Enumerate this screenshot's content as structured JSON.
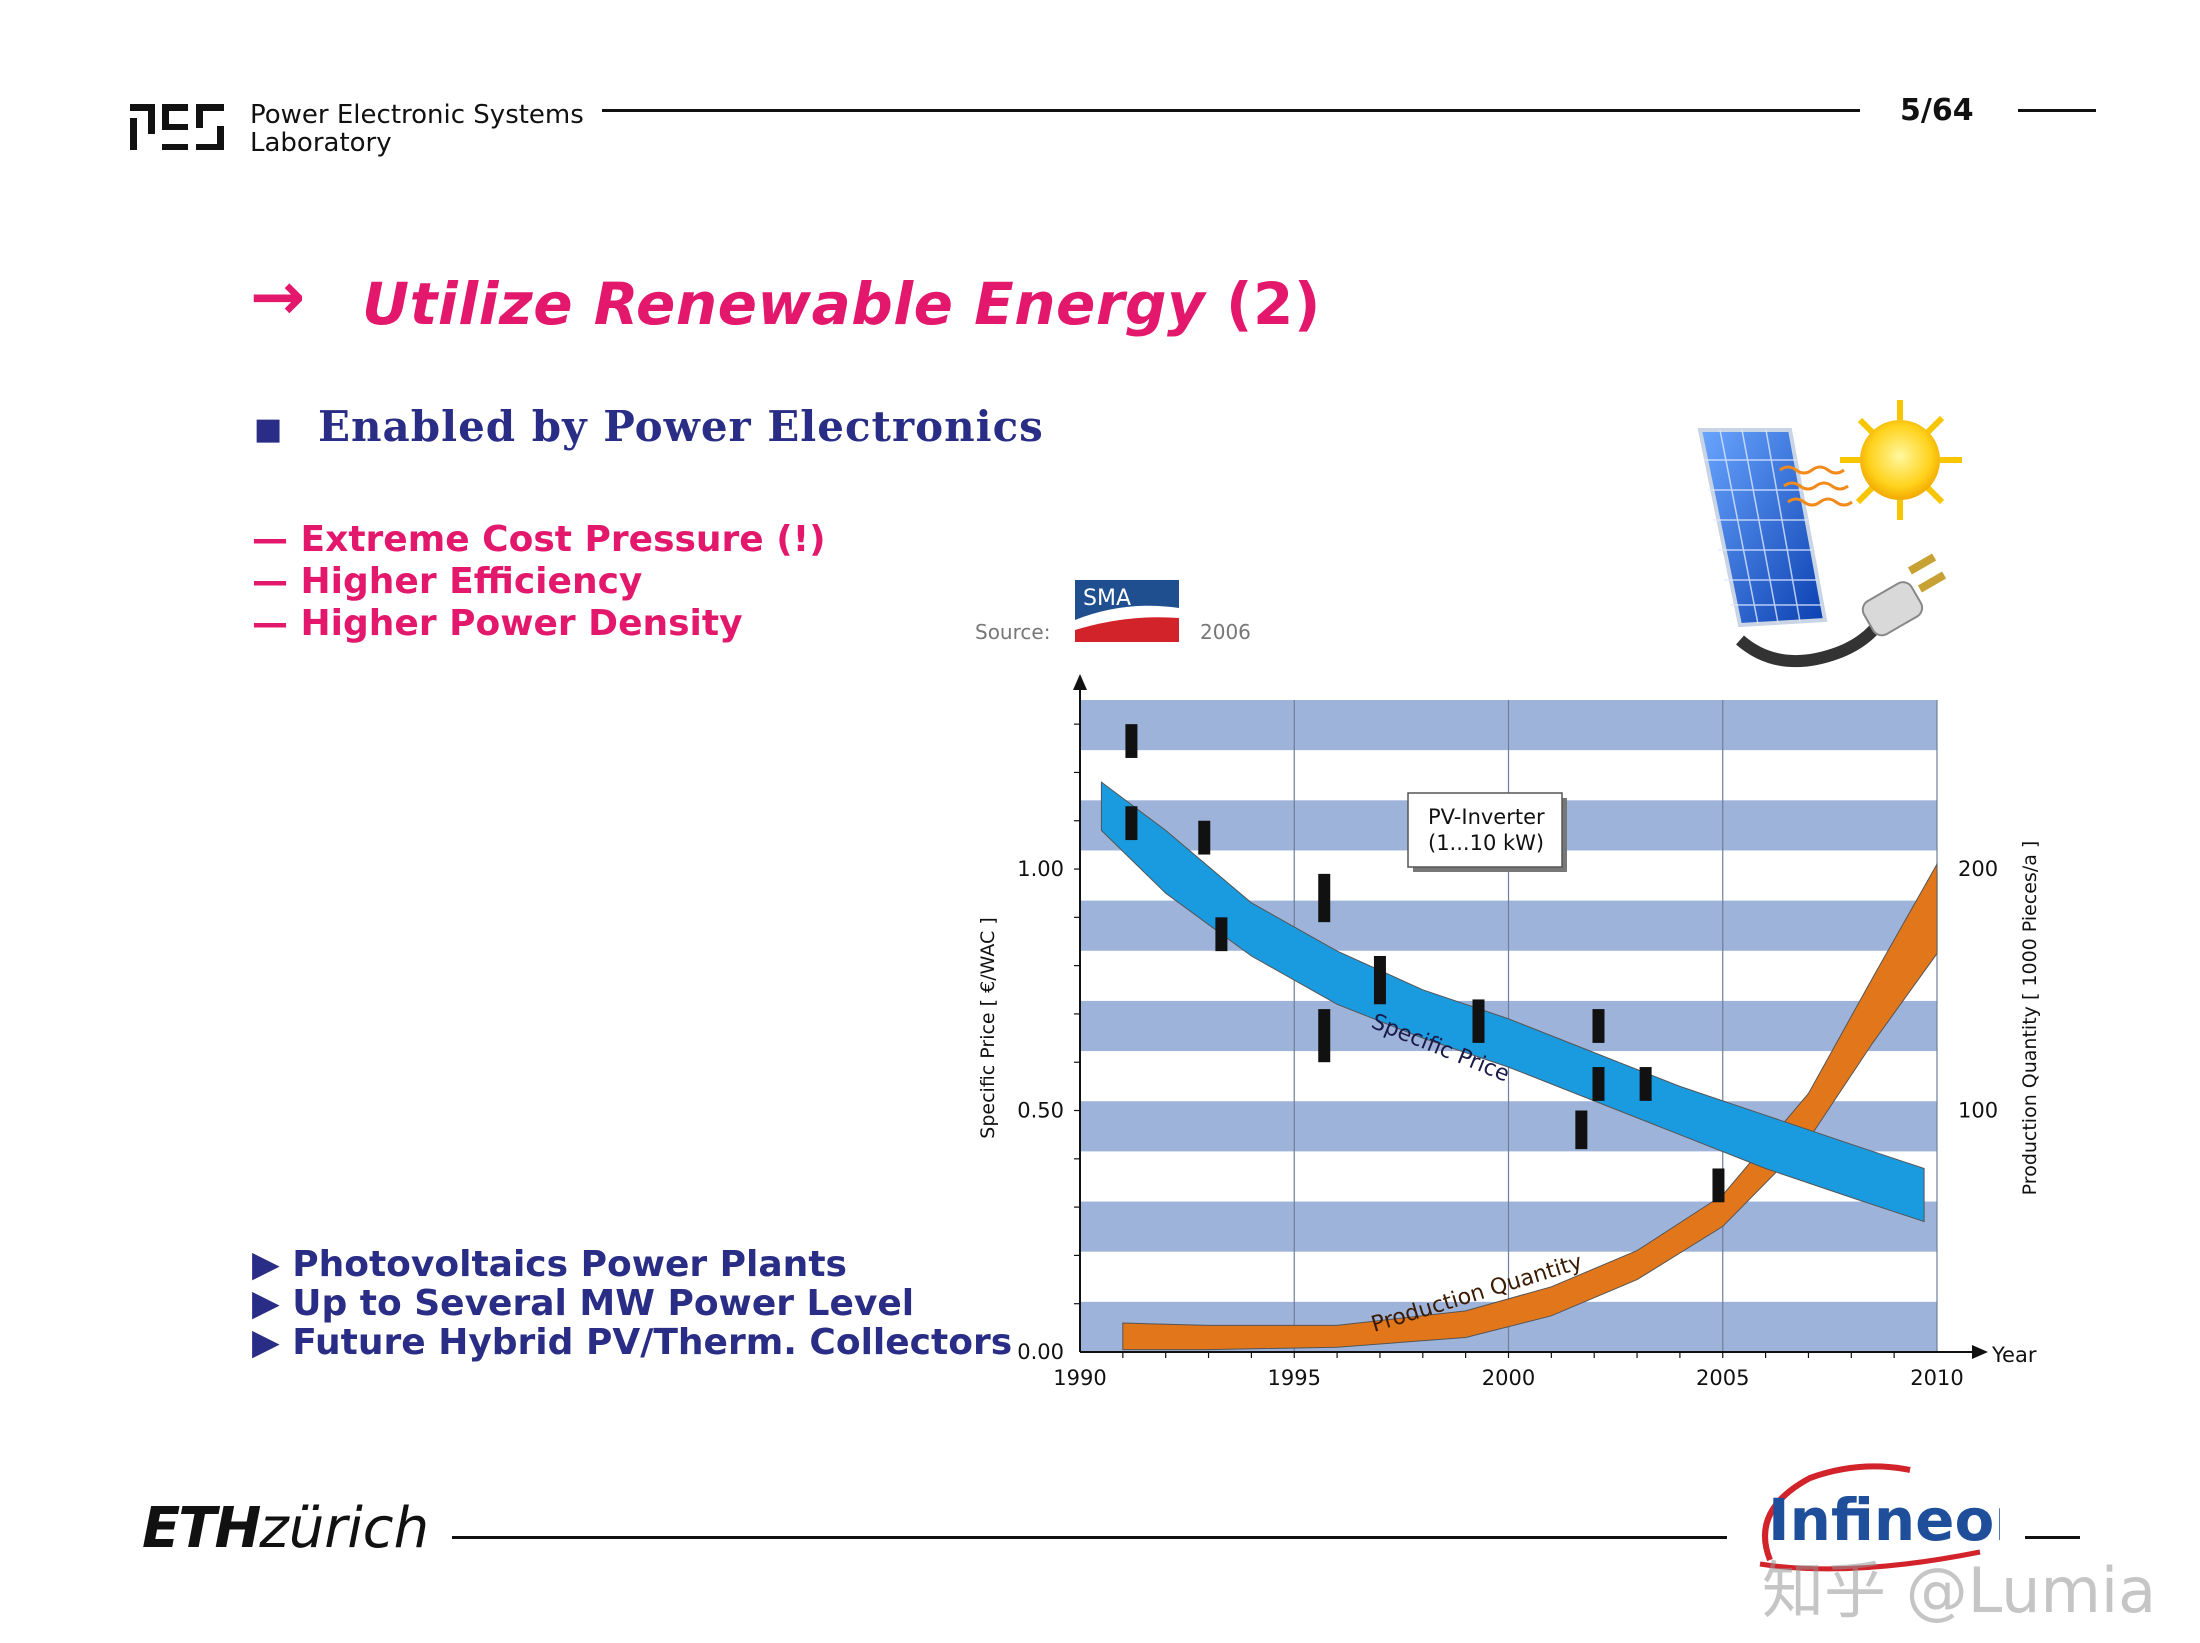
{
  "header": {
    "lab_line1": "Power Electronic Systems",
    "lab_line2": "Laboratory",
    "page": "5/64"
  },
  "slide": {
    "arrow": "→",
    "title": "Utilize Renewable Energy",
    "title_num": "(2)",
    "subtitle_bullet": "■",
    "subtitle": "Enabled by Power Electronics",
    "red_items": [
      "—  Extreme Cost Pressure (!)",
      "—  Higher Efficiency",
      "—  Higher Power Density"
    ],
    "blue_items": [
      "▶  Photovoltaics Power Plants",
      "▶  Up to Several MW Power Level",
      "▶  Future Hybrid PV/Therm. Collectors"
    ]
  },
  "source": {
    "label": "Source:",
    "brand": "SMA",
    "year": "2006"
  },
  "footer": {
    "eth": "ETH",
    "zurich": "zürich",
    "infineon": "Infineon",
    "watermark": "知乎 @Lumia"
  },
  "colors": {
    "accent": "#e3186c",
    "navy": "#2a2d86",
    "band": "#9db3da",
    "price": "#1a9bdf",
    "quantity": "#e2761b"
  },
  "chart_data": {
    "type": "area",
    "title": "PV-Inverter",
    "subtitle": "(1...10 kW)",
    "xlabel": "Year",
    "ylabel_left": "Specific Price [ €/WAC ]",
    "ylabel_right": "Production Quantity  [ 1000 Pieces/a ]",
    "x_ticks": [
      "1990",
      "1995",
      "2000",
      "2005",
      "2010"
    ],
    "y_left_ticks": [
      "0.00",
      "0.50",
      "1.00"
    ],
    "y_right_ticks": [
      "100",
      "200"
    ],
    "xlim": [
      1990,
      2010
    ],
    "ylim_left": [
      0,
      1.35
    ],
    "ylim_right": [
      0,
      270
    ],
    "series": [
      {
        "name": "Specific Price",
        "x": [
          1990.5,
          1992,
          1994,
          1996,
          1998,
          2000,
          2002,
          2004,
          2006,
          2008,
          2009.7
        ],
        "upper": [
          1.18,
          1.08,
          0.93,
          0.83,
          0.75,
          0.69,
          0.62,
          0.55,
          0.49,
          0.43,
          0.38
        ],
        "lower": [
          1.08,
          0.95,
          0.82,
          0.72,
          0.65,
          0.59,
          0.52,
          0.45,
          0.38,
          0.32,
          0.27
        ]
      },
      {
        "name": "Production Quantity",
        "x": [
          1991,
          1993,
          1996,
          1999,
          2001,
          2003,
          2005,
          2007,
          2008.5,
          2010
        ],
        "upper": [
          12,
          11,
          11,
          17,
          27,
          42,
          65,
          107,
          155,
          202
        ],
        "lower": [
          1,
          1,
          2,
          6,
          15,
          30,
          52,
          88,
          128,
          165
        ]
      }
    ],
    "markers": [
      {
        "x": 1991.2,
        "y0": 1.23,
        "y1": 1.3
      },
      {
        "x": 1991.2,
        "y0": 1.06,
        "y1": 1.13
      },
      {
        "x": 1992.9,
        "y0": 1.03,
        "y1": 1.1
      },
      {
        "x": 1993.3,
        "y0": 0.83,
        "y1": 0.9
      },
      {
        "x": 1995.7,
        "y0": 0.89,
        "y1": 0.99
      },
      {
        "x": 1995.7,
        "y0": 0.6,
        "y1": 0.71
      },
      {
        "x": 1997,
        "y0": 0.72,
        "y1": 0.82
      },
      {
        "x": 1999.3,
        "y0": 0.64,
        "y1": 0.73
      },
      {
        "x": 2001.7,
        "y0": 0.42,
        "y1": 0.5
      },
      {
        "x": 2002.1,
        "y0": 0.52,
        "y1": 0.59
      },
      {
        "x": 2002.1,
        "y0": 0.64,
        "y1": 0.71
      },
      {
        "x": 2003.2,
        "y0": 0.52,
        "y1": 0.59
      },
      {
        "x": 2004.9,
        "y0": 0.31,
        "y1": 0.38
      }
    ],
    "grid": true,
    "legend": "inline labels on curves"
  }
}
